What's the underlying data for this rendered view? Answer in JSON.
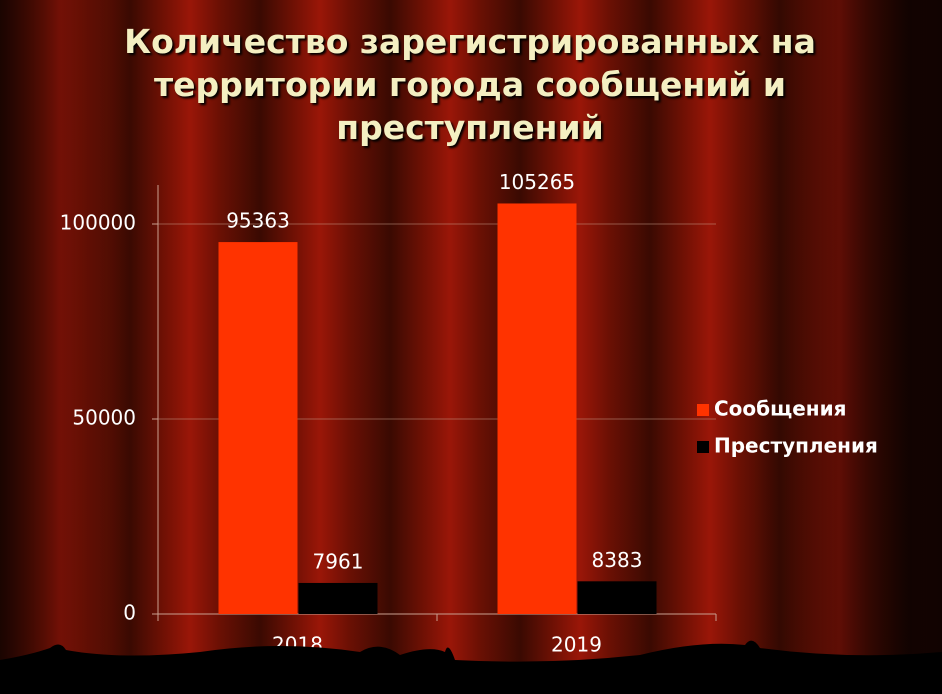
{
  "chart_data": {
    "type": "bar",
    "title": "Количество зарегистрированных на территории города сообщений и преступлений",
    "categories": [
      "2018",
      "2019"
    ],
    "series": [
      {
        "name": "Сообщения",
        "color": "#ff3300",
        "values": [
          95363,
          105265
        ]
      },
      {
        "name": "Преступления",
        "color": "#000000",
        "values": [
          7961,
          8383
        ]
      }
    ],
    "ylim": [
      0,
      110000
    ],
    "yticks": [
      0,
      50000,
      100000
    ],
    "grid": true,
    "legend": "right"
  }
}
